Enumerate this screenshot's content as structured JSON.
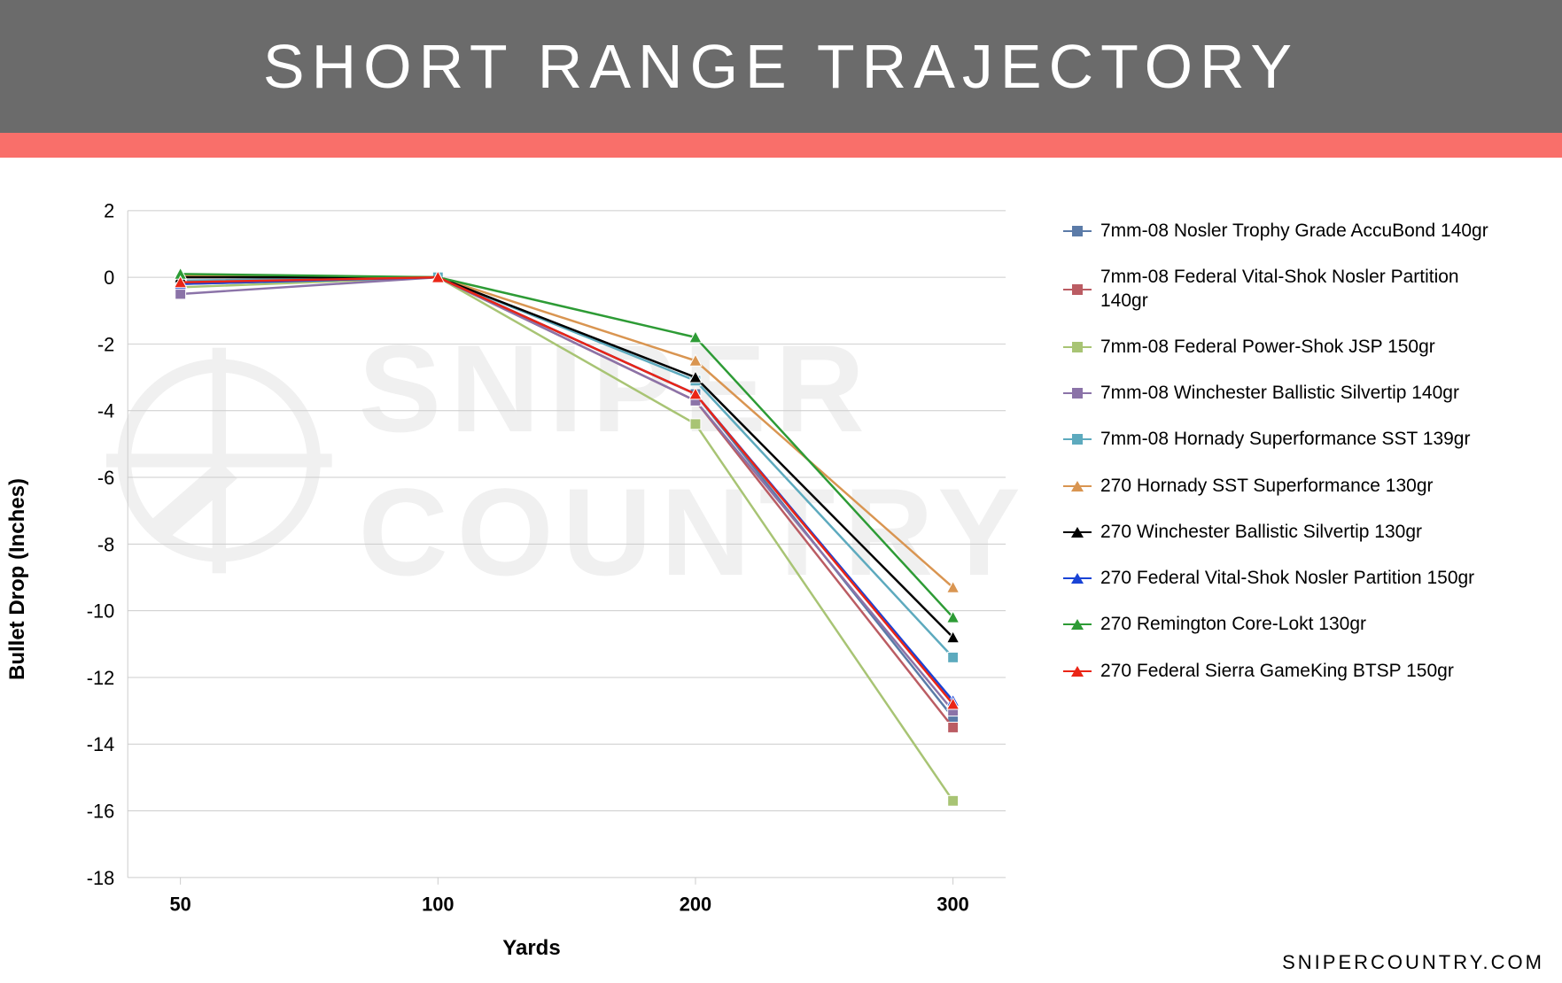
{
  "header": {
    "title": "SHORT RANGE TRAJECTORY",
    "background_color": "#6b6b6b",
    "accent_color": "#f96f6a",
    "title_color": "#ffffff",
    "title_fontsize": 70
  },
  "watermark_text": "SNIPER COUNTRY",
  "watermark_color": "#f0f0f0",
  "footer_text": "SNIPERCOUNTRY.COM",
  "chart": {
    "type": "line",
    "xlabel": "Yards",
    "ylabel": "Bullet Drop (Inches)",
    "label_fontsize": 24,
    "tick_fontsize": 22,
    "background_color": "#ffffff",
    "grid_color": "#cccccc",
    "grid_width": 1,
    "x_categories": [
      "50",
      "100",
      "200",
      "300"
    ],
    "ylim": [
      -18,
      2
    ],
    "ytick_step": 2,
    "yticks": [
      2,
      0,
      -2,
      -4,
      -6,
      -8,
      -10,
      -12,
      -14,
      -16,
      -18
    ],
    "line_width": 2.5,
    "marker_size": 12,
    "series": [
      {
        "label": "7mm-08 Nosler Trophy Grade AccuBond 140gr",
        "color": "#5b7ba8",
        "marker": "square",
        "values": [
          -0.15,
          0,
          -3.5,
          -13.2
        ]
      },
      {
        "label": "7mm-08 Federal Vital-Shok Nosler Partition 140gr",
        "color": "#bb5c63",
        "marker": "square",
        "values": [
          -0.2,
          0,
          -3.7,
          -13.5
        ]
      },
      {
        "label": "7mm-08 Federal Power-Shok JSP 150gr",
        "color": "#a8c474",
        "marker": "square",
        "values": [
          -0.3,
          0,
          -4.4,
          -15.7
        ]
      },
      {
        "label": "7mm-08 Winchester Ballistic Silvertip 140gr",
        "color": "#8b73a8",
        "marker": "square",
        "values": [
          -0.5,
          0,
          -3.7,
          -13.0
        ]
      },
      {
        "label": "7mm-08 Hornady Superformance SST 139gr",
        "color": "#5daabe",
        "marker": "square",
        "values": [
          -0.1,
          0,
          -3.1,
          -11.4
        ]
      },
      {
        "label": "270 Hornady SST Superformance 130gr",
        "color": "#d99551",
        "marker": "triangle",
        "values": [
          0.05,
          0,
          -2.5,
          -9.3
        ]
      },
      {
        "label": "270 Winchester Ballistic Silvertip 130gr",
        "color": "#000000",
        "marker": "triangle",
        "values": [
          0.0,
          0,
          -3.0,
          -10.8
        ]
      },
      {
        "label": "270 Federal Vital-Shok Nosler Partition 150gr",
        "color": "#1943d6",
        "marker": "triangle",
        "values": [
          -0.2,
          0,
          -3.5,
          -12.7
        ]
      },
      {
        "label": "270 Remington Core-Lokt 130gr",
        "color": "#2d9b35",
        "marker": "triangle",
        "values": [
          0.1,
          0,
          -1.8,
          -10.2
        ]
      },
      {
        "label": "270 Federal Sierra GameKing BTSP 150gr",
        "color": "#ea2516",
        "marker": "triangle",
        "values": [
          -0.15,
          0,
          -3.5,
          -12.8
        ]
      }
    ]
  }
}
